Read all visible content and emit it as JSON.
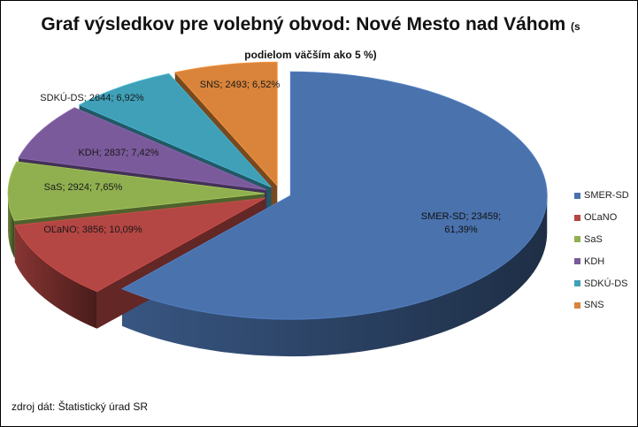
{
  "chart_data": {
    "type": "pie",
    "title": "Graf výsledkov pre volebný obvod: Nové Mesto nad Váhom",
    "subtitle": "(s podielom väčším ako 5 %)",
    "slices": [
      {
        "name": "SMER-SD",
        "value": 23459,
        "percent": "61,39%",
        "label": "SMER-SD; 23459;",
        "label2": "61,39%",
        "color": "#4a72ad"
      },
      {
        "name": "OĽaNO",
        "value": 3856,
        "percent": "10,09%",
        "label": "OĽaNO; 3856; 10,09%",
        "color": "#b44643"
      },
      {
        "name": "SaS",
        "value": 2924,
        "percent": "7,65%",
        "label": "SaS; 2924; 7,65%",
        "color": "#90b050"
      },
      {
        "name": "KDH",
        "value": 2837,
        "percent": "7,42%",
        "label": "KDH; 2837; 7,42%",
        "color": "#7a5a9b"
      },
      {
        "name": "SDKÚ-DS",
        "value": 2644,
        "percent": "6,92%",
        "label": "SDKÚ-DS; 2644; 6,92%",
        "color": "#3fa0b8"
      },
      {
        "name": "SNS",
        "value": 2493,
        "percent": "6,52%",
        "label": "SNS; 2493; 6,52%",
        "color": "#d9843a"
      }
    ],
    "legend": {
      "position": "right",
      "entries": [
        "SMER-SD",
        "OĽaNO",
        "SaS",
        "KDH",
        "SDKÚ-DS",
        "SNS"
      ]
    },
    "style": "3d-exploded"
  },
  "footer": {
    "source": "zdroj dát: Štatistický úrad SR"
  }
}
